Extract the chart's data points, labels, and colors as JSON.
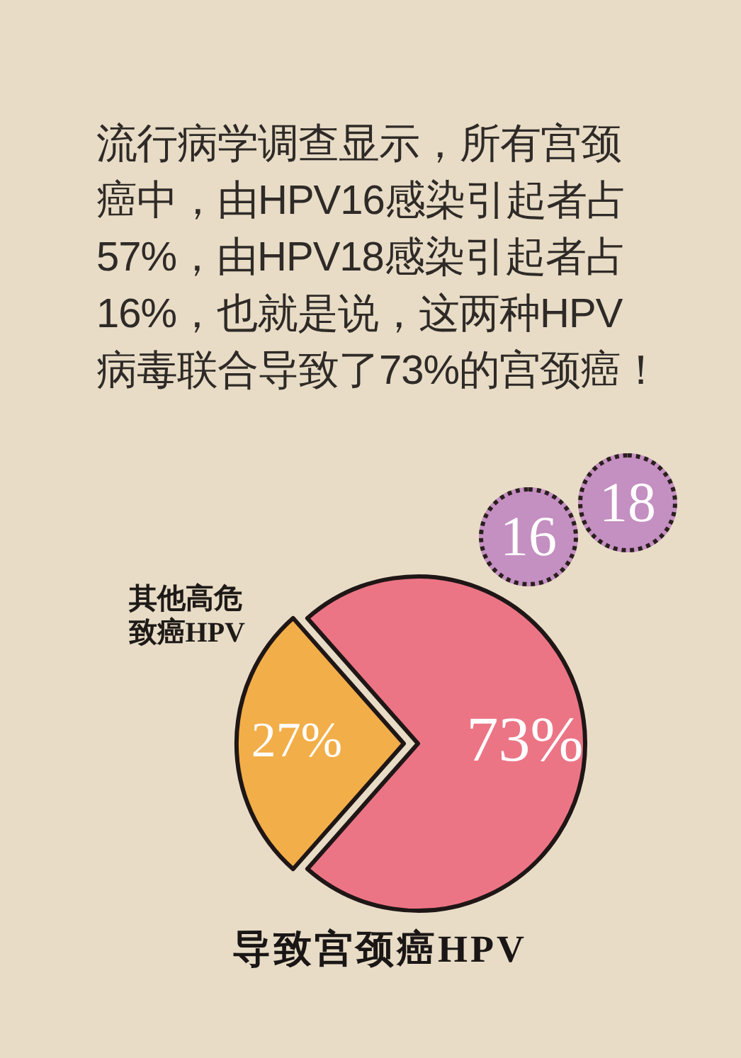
{
  "chart_data": {
    "type": "pie",
    "title": "流行病学调查显示，所有宫颈癌中，由HPV16感染引起者占57%，由HPV18感染引起者占16%，也就是说，这两种HPV病毒联合导致了73%的宫颈癌！",
    "xlabel": "导致宫颈癌HPV",
    "categories": [
      null,
      "其他高危致癌HPV"
    ],
    "values": [
      73,
      27
    ],
    "colors": [
      "#ec7585",
      "#f2ae48"
    ],
    "value_labels": [
      "73%",
      "27%"
    ],
    "annotations": [
      "16",
      "18"
    ]
  }
}
